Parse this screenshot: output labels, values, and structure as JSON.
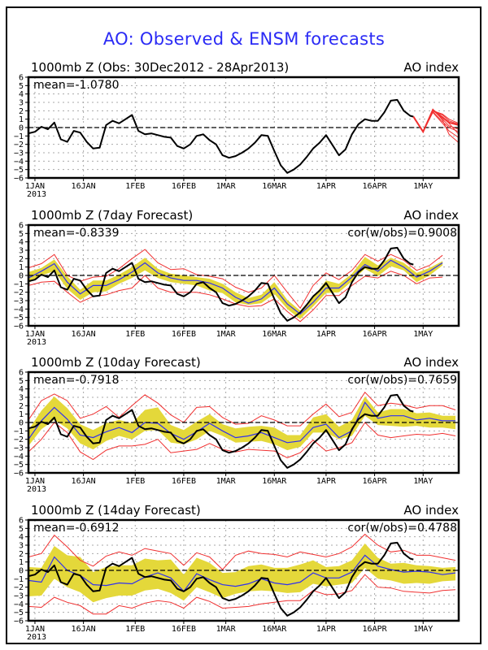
{
  "title": "AO: Observed & ENSM forecasts",
  "colors": {
    "title": "#2b2bf5",
    "observed": "#000000",
    "ensemble": "#f03030",
    "mean": "#3030f0",
    "band": "#e4d83a",
    "extremes": "#f03030",
    "zero": "#000000",
    "grid": "#aaaaaa"
  },
  "chart_data": [
    {
      "type": "line",
      "title": "1000mb Z (Obs: 30Dec2012 - 28Apr2013)",
      "right_label": "AO index",
      "stat_left": "mean=-1.0780",
      "stat_right": "",
      "xlabel": "",
      "ylabel": "AO index",
      "x_unit": "days since 1JAN2013",
      "xlim": [
        -2,
        131
      ],
      "ylim": [
        -6,
        6
      ],
      "x_ticks": [
        {
          "day": 0,
          "label": "1JAN"
        },
        {
          "day": 15,
          "label": "16JAN"
        },
        {
          "day": 31,
          "label": "1FEB"
        },
        {
          "day": 46,
          "label": "16FEB"
        },
        {
          "day": 59,
          "label": "1MAR"
        },
        {
          "day": 74,
          "label": "16MAR"
        },
        {
          "day": 90,
          "label": "1APR"
        },
        {
          "day": 105,
          "label": "16APR"
        },
        {
          "day": 120,
          "label": "1MAY"
        }
      ],
      "year_label": "2013",
      "y_ticks": [
        6,
        5,
        4,
        3,
        2,
        1,
        0,
        -1,
        -2,
        -3,
        -4,
        -5,
        -6
      ],
      "grid": true,
      "observed": {
        "x": [
          -2,
          0,
          2,
          4,
          6,
          8,
          10,
          12,
          14,
          16,
          18,
          20,
          22,
          24,
          26,
          28,
          30,
          32,
          34,
          36,
          38,
          40,
          42,
          44,
          46,
          48,
          50,
          52,
          54,
          56,
          58,
          60,
          62,
          64,
          66,
          68,
          70,
          72,
          74,
          76,
          78,
          80,
          82,
          84,
          86,
          88,
          90,
          92,
          94,
          96,
          98,
          100,
          102,
          104,
          106,
          108,
          110,
          112,
          114,
          116,
          117
        ],
        "y": [
          -0.7,
          -0.5,
          0.1,
          -0.2,
          0.6,
          -1.4,
          -1.7,
          -0.4,
          -0.6,
          -1.7,
          -2.5,
          -2.4,
          0.3,
          0.8,
          0.5,
          1.0,
          1.5,
          -0.4,
          -0.8,
          -0.7,
          -0.9,
          -1.1,
          -1.2,
          -2.2,
          -2.5,
          -2.0,
          -1.0,
          -0.8,
          -1.5,
          -2.0,
          -3.3,
          -3.6,
          -3.4,
          -3.0,
          -2.5,
          -1.8,
          -0.9,
          -1.0,
          -2.8,
          -4.5,
          -5.4,
          -5.0,
          -4.4,
          -3.5,
          -2.5,
          -1.8,
          -0.9,
          -2.1,
          -3.3,
          -2.6,
          -0.8,
          0.4,
          1.0,
          0.8,
          0.8,
          1.8,
          3.2,
          3.3,
          2.0,
          1.4,
          1.3
        ]
      },
      "ensemble_members": [
        {
          "x": [
            117,
            120,
            123,
            126,
            128,
            131
          ],
          "y": [
            1.3,
            -0.5,
            2.1,
            1.2,
            0.6,
            0.3
          ]
        },
        {
          "x": [
            117,
            120,
            123,
            126,
            128,
            131
          ],
          "y": [
            1.3,
            -0.5,
            2.0,
            1.5,
            0.8,
            0.4
          ]
        },
        {
          "x": [
            117,
            120,
            123,
            126,
            128,
            131
          ],
          "y": [
            1.3,
            -0.5,
            2.1,
            1.0,
            0.2,
            -0.2
          ]
        },
        {
          "x": [
            117,
            120,
            123,
            126,
            128,
            131
          ],
          "y": [
            1.3,
            -0.5,
            1.9,
            0.7,
            0.0,
            -0.5
          ]
        },
        {
          "x": [
            117,
            120,
            123,
            126,
            128,
            131
          ],
          "y": [
            1.3,
            -0.5,
            2.0,
            1.3,
            0.5,
            -0.8
          ]
        },
        {
          "x": [
            117,
            120,
            123,
            126,
            128,
            131
          ],
          "y": [
            1.3,
            -0.5,
            1.8,
            0.5,
            -0.4,
            -1.2
          ]
        },
        {
          "x": [
            117,
            120,
            123,
            126,
            128,
            131
          ],
          "y": [
            1.3,
            -0.5,
            2.2,
            0.9,
            -0.8,
            -1.8
          ]
        },
        {
          "x": [
            117,
            120,
            123,
            126,
            128,
            131
          ],
          "y": [
            1.3,
            -0.5,
            2.0,
            1.6,
            1.0,
            0.5
          ]
        }
      ]
    },
    {
      "type": "line",
      "title": "1000mb Z (7day Forecast)",
      "right_label": "AO index",
      "stat_left": "mean=-0.8339",
      "stat_right": "cor(w/obs)=0.9008",
      "xlim": [
        -2,
        131
      ],
      "ylim": [
        -6,
        6
      ],
      "forecast": {
        "x": [
          -2,
          2,
          6,
          10,
          14,
          18,
          22,
          26,
          30,
          34,
          38,
          42,
          46,
          50,
          54,
          58,
          62,
          66,
          70,
          74,
          78,
          82,
          86,
          90,
          94,
          98,
          102,
          106,
          110,
          114,
          118,
          122,
          126
        ],
        "mean": [
          -0.3,
          0.5,
          1.4,
          -0.8,
          -2.2,
          -1.2,
          -1.2,
          -0.5,
          0.4,
          1.5,
          0.3,
          -0.3,
          -0.6,
          -0.6,
          -0.9,
          -1.5,
          -2.6,
          -3.3,
          -2.8,
          -1.5,
          -3.4,
          -4.6,
          -3.2,
          -1.5,
          -1.5,
          -0.2,
          1.3,
          0.5,
          1.8,
          1.0,
          -0.2,
          0.5,
          1.5
        ],
        "band_lo": [
          -0.9,
          0.0,
          0.5,
          -1.6,
          -2.9,
          -2.0,
          -1.9,
          -1.0,
          -0.3,
          0.6,
          -0.3,
          -0.8,
          -1.0,
          -1.2,
          -1.8,
          -2.1,
          -3.2,
          -3.5,
          -3.3,
          -2.2,
          -4.0,
          -5.2,
          -3.7,
          -2.1,
          -2.0,
          -0.7,
          0.8,
          -0.1,
          1.1,
          0.6,
          -0.8,
          0.0,
          1.2
        ],
        "band_hi": [
          0.4,
          0.9,
          1.9,
          -0.1,
          -1.7,
          -0.6,
          -0.6,
          0.1,
          1.0,
          2.1,
          0.8,
          0.2,
          0.0,
          -0.2,
          -0.4,
          -1.0,
          -2.0,
          -2.7,
          -2.3,
          -0.8,
          -2.9,
          -4.2,
          -2.6,
          -0.6,
          -1.0,
          0.2,
          2.2,
          1.2,
          2.1,
          1.5,
          0.3,
          0.9,
          1.7
        ],
        "min": [
          -1.2,
          -0.8,
          -0.7,
          -2.0,
          -3.2,
          -2.5,
          -2.3,
          -1.8,
          -1.5,
          0.0,
          -1.5,
          -2.0,
          -2.0,
          -2.0,
          -2.3,
          -2.8,
          -3.4,
          -3.7,
          -3.6,
          -2.8,
          -4.3,
          -5.5,
          -4.1,
          -2.4,
          -2.4,
          -1.2,
          -0.1,
          -0.3,
          0.5,
          0.0,
          -1.0,
          -0.3,
          -0.2
        ],
        "max": [
          0.9,
          1.4,
          2.5,
          0.0,
          -0.7,
          -0.2,
          -0.1,
          0.8,
          2.0,
          3.1,
          1.5,
          0.7,
          0.8,
          0.1,
          -0.1,
          -0.4,
          -1.4,
          -2.0,
          -1.5,
          0.0,
          -2.0,
          -3.9,
          -1.2,
          0.3,
          -0.5,
          0.6,
          2.5,
          1.7,
          2.5,
          1.8,
          0.6,
          1.2,
          2.4
        ]
      }
    },
    {
      "type": "line",
      "title": "1000mb Z (10day Forecast)",
      "right_label": "AO index",
      "stat_left": "mean=-0.7918",
      "stat_right": "cor(w/obs)=0.7659",
      "xlim": [
        -2,
        131
      ],
      "ylim": [
        -6,
        6
      ],
      "forecast": {
        "x": [
          -2,
          2,
          6,
          10,
          14,
          18,
          22,
          26,
          30,
          34,
          38,
          42,
          46,
          50,
          54,
          58,
          62,
          66,
          70,
          74,
          78,
          82,
          86,
          90,
          94,
          98,
          102,
          106,
          110,
          114,
          118,
          122,
          126,
          130
        ],
        "mean": [
          -2.0,
          0.2,
          1.8,
          0.4,
          -1.5,
          -1.8,
          -1.1,
          -0.6,
          -1.2,
          0.0,
          -0.1,
          -1.3,
          -2.0,
          -1.1,
          -0.1,
          -1.0,
          -1.8,
          -1.6,
          -1.2,
          -1.8,
          -2.4,
          -2.2,
          -0.6,
          -0.2,
          -1.8,
          -1.0,
          2.4,
          0.5,
          0.8,
          0.8,
          0.3,
          0.5,
          0.2,
          0.2
        ],
        "band_lo": [
          -2.8,
          -0.8,
          0.3,
          -0.7,
          -2.5,
          -3.2,
          -2.2,
          -1.6,
          -2.0,
          -1.0,
          -0.9,
          -2.4,
          -2.6,
          -2.0,
          -1.0,
          -1.6,
          -2.4,
          -2.3,
          -2.2,
          -2.6,
          -3.3,
          -2.9,
          -1.2,
          -1.2,
          -2.0,
          -1.6,
          0.8,
          -0.3,
          -0.4,
          -0.5,
          -0.4,
          -0.6,
          -0.6,
          -0.8
        ],
        "band_hi": [
          -0.9,
          1.4,
          3.1,
          1.7,
          -0.2,
          -0.9,
          -0.1,
          0.3,
          -0.1,
          1.5,
          1.8,
          -0.3,
          -0.9,
          0.1,
          1.0,
          -0.2,
          -0.7,
          -0.5,
          -0.4,
          -0.6,
          -1.5,
          -1.5,
          0.6,
          1.0,
          -0.5,
          0.3,
          3.1,
          1.2,
          1.6,
          1.6,
          1.1,
          1.2,
          0.8,
          0.8
        ],
        "min": [
          -3.5,
          -2.0,
          0.0,
          -1.2,
          -3.5,
          -4.4,
          -3.3,
          -2.8,
          -2.8,
          -2.6,
          -2.0,
          -3.6,
          -3.4,
          -3.2,
          -2.5,
          -3.2,
          -3.5,
          -3.2,
          -3.3,
          -3.4,
          -4.2,
          -3.6,
          -2.1,
          -3.4,
          -3.0,
          -2.4,
          0.0,
          -1.5,
          -1.8,
          -1.6,
          -1.4,
          -1.5,
          -1.3,
          -1.6
        ],
        "max": [
          0.3,
          2.6,
          3.4,
          2.6,
          0.5,
          1.0,
          1.9,
          0.6,
          2.0,
          3.3,
          2.3,
          0.9,
          0.0,
          1.8,
          1.9,
          0.6,
          -0.2,
          -0.1,
          0.8,
          0.3,
          -0.4,
          -0.4,
          1.0,
          2.2,
          0.7,
          1.2,
          3.6,
          2.0,
          2.3,
          2.1,
          1.7,
          2.0,
          2.0,
          1.5
        ]
      }
    },
    {
      "type": "line",
      "title": "1000mb Z (14day Forecast)",
      "right_label": "AO index",
      "stat_left": "mean=-0.6912",
      "stat_right": "cor(w/obs)=0.4788",
      "xlim": [
        -2,
        131
      ],
      "ylim": [
        -6,
        6
      ],
      "forecast": {
        "x": [
          -2,
          2,
          6,
          10,
          14,
          18,
          22,
          26,
          30,
          34,
          38,
          42,
          46,
          50,
          54,
          58,
          62,
          66,
          70,
          74,
          78,
          82,
          86,
          90,
          94,
          98,
          102,
          106,
          110,
          114,
          118,
          122,
          126,
          130
        ],
        "mean": [
          -1.2,
          -1.4,
          1.6,
          0.0,
          -0.6,
          -1.7,
          -1.8,
          -1.5,
          -1.6,
          -0.8,
          -0.3,
          -0.9,
          -2.5,
          -0.4,
          -1.1,
          -1.7,
          -1.9,
          -1.6,
          -1.0,
          -1.5,
          -1.7,
          -1.4,
          -0.3,
          -0.9,
          -0.9,
          -0.2,
          1.8,
          0.5,
          0.1,
          -0.2,
          -0.1,
          -0.2,
          -0.5,
          -0.3
        ],
        "band_lo": [
          -3.1,
          -3.0,
          -1.0,
          -2.0,
          -2.6,
          -3.8,
          -3.3,
          -3.0,
          -3.0,
          -2.4,
          -2.2,
          -2.7,
          -3.6,
          -2.0,
          -2.6,
          -3.3,
          -2.8,
          -2.5,
          -2.4,
          -2.5,
          -2.7,
          -2.6,
          -1.6,
          -1.9,
          -1.7,
          -1.5,
          0.3,
          -1.0,
          -1.2,
          -1.6,
          -1.5,
          -1.6,
          -1.3,
          -1.2
        ],
        "band_hi": [
          0.4,
          0.3,
          2.9,
          1.8,
          1.6,
          -0.2,
          0.4,
          0.6,
          0.6,
          1.4,
          1.2,
          1.3,
          -0.5,
          1.5,
          0.9,
          -0.3,
          -0.2,
          0.5,
          0.7,
          0.3,
          0.3,
          0.7,
          1.2,
          0.4,
          0.5,
          1.2,
          3.2,
          1.5,
          0.8,
          0.9,
          0.6,
          0.5,
          0.3,
          0.4
        ],
        "min": [
          -4.3,
          -4.4,
          -3.2,
          -3.8,
          -4.2,
          -5.2,
          -5.2,
          -4.2,
          -4.5,
          -3.9,
          -3.6,
          -3.8,
          -4.5,
          -3.2,
          -3.7,
          -4.5,
          -4.4,
          -4.3,
          -4.0,
          -3.8,
          -3.6,
          -3.6,
          -2.4,
          -2.9,
          -2.8,
          -2.4,
          -0.5,
          -2.0,
          -2.1,
          -2.5,
          -2.6,
          -2.7,
          -2.4,
          -2.3
        ],
        "max": [
          1.6,
          2.0,
          4.2,
          2.8,
          1.2,
          0.5,
          1.7,
          2.2,
          1.8,
          2.6,
          2.3,
          2.0,
          0.6,
          2.1,
          1.6,
          0.1,
          1.8,
          2.3,
          2.0,
          1.9,
          1.6,
          2.2,
          1.9,
          1.6,
          2.0,
          2.8,
          4.3,
          3.0,
          2.2,
          2.4,
          1.8,
          1.8,
          1.5,
          1.2
        ]
      }
    }
  ]
}
